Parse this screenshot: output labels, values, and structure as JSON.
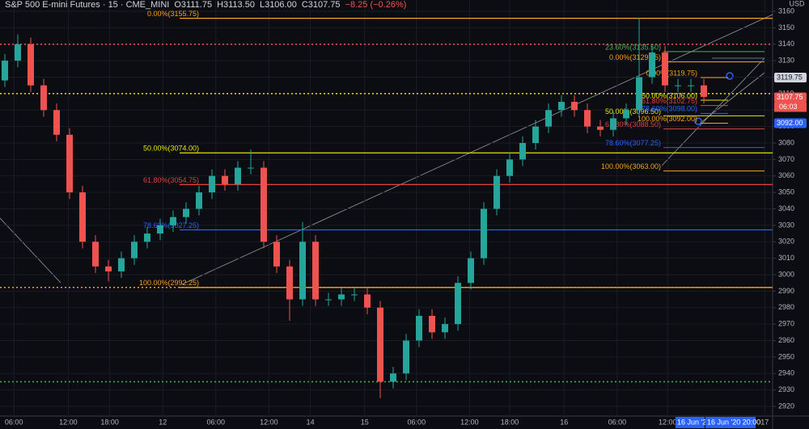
{
  "chart_data": {
    "type": "candlestick",
    "header": {
      "symbol": "S&P 500 E-mini Futures · 15 · CME_MINI",
      "open": "O3111.75",
      "high": "H3113.50",
      "low": "L3106.00",
      "close": "C3107.75",
      "change": "−8.25 (−0.26%)"
    },
    "currency": "USD",
    "open": [
      3118,
      3130,
      3140,
      3115,
      3100,
      3085,
      3050,
      3020,
      3005,
      3002,
      3010,
      3020,
      3025,
      3030,
      3035,
      3040,
      3050,
      3060,
      3055,
      3065,
      3065,
      3020,
      3005,
      2985,
      3020,
      2985,
      2985,
      2988,
      2988,
      2980,
      2935,
      2940,
      2960,
      2975,
      2965,
      2970,
      2995,
      3010,
      3040,
      3060,
      3070,
      3080,
      3090,
      3100,
      3105,
      3100,
      3090,
      3088,
      3095,
      3100,
      3120,
      3135,
      3115,
      3115,
      3115
    ],
    "high": [
      3134,
      3146,
      3144,
      3119,
      3104,
      3089,
      3054,
      3024,
      3009,
      3014,
      3024,
      3029,
      3034,
      3039,
      3044,
      3054,
      3064,
      3064,
      3069,
      3076,
      3069,
      3024,
      3009,
      3032,
      3024,
      2989,
      2992,
      2992,
      2992,
      2984,
      2944,
      2964,
      2979,
      2979,
      2974,
      2999,
      3014,
      3044,
      3064,
      3074,
      3084,
      3094,
      3104,
      3109,
      3109,
      3104,
      3094,
      3099,
      3104,
      3156,
      3139,
      3139,
      3119,
      3119,
      3119
    ],
    "low": [
      3114,
      3126,
      3111,
      3096,
      3081,
      3046,
      3016,
      3001,
      2996,
      2998,
      3006,
      3016,
      3021,
      3026,
      3031,
      3036,
      3046,
      3051,
      3051,
      3061,
      3016,
      3001,
      2972,
      2981,
      2981,
      2981,
      2981,
      2984,
      2976,
      2925,
      2931,
      2936,
      2956,
      2961,
      2961,
      2966,
      2991,
      3006,
      3036,
      3056,
      3066,
      3076,
      3086,
      3096,
      3096,
      3086,
      3084,
      3084,
      3091,
      3096,
      3116,
      3111,
      3111,
      3111,
      3104
    ],
    "close": [
      3130,
      3140,
      3115,
      3100,
      3085,
      3050,
      3020,
      3005,
      3002,
      3010,
      3020,
      3025,
      3030,
      3035,
      3040,
      3050,
      3060,
      3055,
      3065,
      3065,
      3020,
      3005,
      2985,
      3020,
      2985,
      2985,
      2988,
      2988,
      2980,
      2935,
      2940,
      2960,
      2975,
      2965,
      2970,
      2995,
      3010,
      3040,
      3060,
      3070,
      3080,
      3090,
      3100,
      3105,
      3100,
      3090,
      3088,
      3095,
      3100,
      3120,
      3135,
      3115,
      3115,
      3115,
      3108
    ],
    "up_color": "#26a69a",
    "down_color": "#ef5350",
    "xlim": [
      -0.375,
      59.31
    ],
    "xticks": [
      {
        "value": 0.7,
        "label": "06:00"
      },
      {
        "value": 4.9,
        "label": "12:00"
      },
      {
        "value": 8.1,
        "label": "18:00"
      },
      {
        "value": 12.2,
        "label": "12"
      },
      {
        "value": 16.3,
        "label": "06:00"
      },
      {
        "value": 20.4,
        "label": "12:00"
      },
      {
        "value": 23.6,
        "label": "14"
      },
      {
        "value": 27.8,
        "label": "15"
      },
      {
        "value": 31.8,
        "label": "06:00"
      },
      {
        "value": 35.9,
        "label": "12:00"
      },
      {
        "value": 39,
        "label": "18:00"
      },
      {
        "value": 43.2,
        "label": "16"
      },
      {
        "value": 47.3,
        "label": "06:00"
      },
      {
        "value": 51.2,
        "label": "12:00"
      },
      {
        "value": 58.7,
        "label": "17"
      }
    ],
    "ylim": [
      2920,
      3160
    ],
    "yticks": [
      3160,
      3150,
      3140,
      3130,
      3120,
      3110,
      3100,
      3090,
      3080,
      3070,
      3060,
      3050,
      3040,
      3030,
      3020,
      3010,
      3000,
      2990,
      2980,
      2970,
      2960,
      2950,
      2940,
      2930,
      2920
    ],
    "grid": true,
    "levels": [
      {
        "value": 3140,
        "color": "#ef5350"
      },
      {
        "value": 3110,
        "color": "#e5e500"
      },
      {
        "value": 2992.25,
        "color": "#f7a21b"
      },
      {
        "value": 2935,
        "color": "#4caf50"
      }
    ],
    "fibs": [
      {
        "levels": [
          {
            "value": 3155.75,
            "label": "0.00%(3155.75)",
            "color": "#f7a21b"
          },
          {
            "value": 3074,
            "label": "50.00%(3074.00)",
            "color": "#e5e500"
          },
          {
            "value": 3054.75,
            "label": "61.80%(3054.75)",
            "color": "#e04040"
          },
          {
            "value": 3027.25,
            "label": "78.60%(3027.25)",
            "color": "#2962ff"
          },
          {
            "value": 2992.25,
            "label": "100.00%(2992.25)",
            "color": "#f7a21b"
          }
        ]
      },
      {
        "levels": [
          {
            "value": 3135.5,
            "label": "23.60%(3135.50)",
            "color": "#4caf50"
          },
          {
            "value": 3129.25,
            "label": "0.00%(3129.25)",
            "color": "#f7a21b"
          },
          {
            "value": 3096.5,
            "label": "50.00%(3096.50)",
            "color": "#e5e500"
          },
          {
            "value": 3088.5,
            "label": "61.80%(3088.50)",
            "color": "#e04040"
          },
          {
            "value": 3077.25,
            "label": "78.60%(3077.25)",
            "color": "#2962ff"
          },
          {
            "value": 3063,
            "label": "100.00%(3063.00)",
            "color": "#f7a21b"
          }
        ]
      },
      {
        "levels": [
          {
            "value": 3119.75,
            "label": "0.00%(3119.75)",
            "color": "#f7a21b"
          },
          {
            "value": 3106,
            "label": "50.00%(3106.00)",
            "color": "#e5e500"
          },
          {
            "value": 3102.75,
            "label": "61.80%(3102.75)",
            "color": "#e04040"
          },
          {
            "value": 3098,
            "label": "78.60%(3098.00)",
            "color": "#2962ff"
          },
          {
            "value": 3092,
            "label": "100.00%(3092.00)",
            "color": "#f7a21b"
          }
        ]
      }
    ],
    "price_tags": [
      {
        "value": 3119.75,
        "label": "3119.75",
        "color": "#d1d4dc"
      },
      {
        "value": 3107.75,
        "label": "3107.75",
        "color": "#ef5350"
      },
      {
        "value": 3092,
        "label": "3092.00",
        "color": "#2962ff"
      }
    ],
    "countdown": "06:03",
    "time_tags": [
      "16 Jun '20",
      "16 Jun '20  20:00"
    ]
  }
}
